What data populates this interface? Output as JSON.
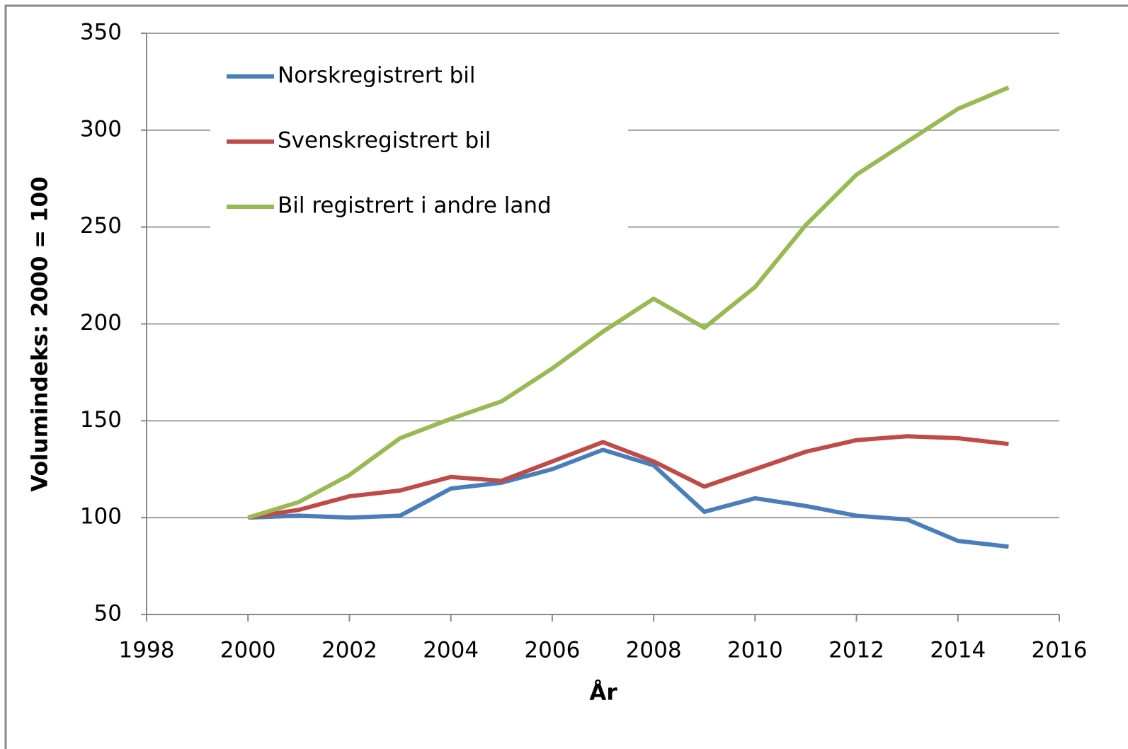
{
  "chart_data": {
    "type": "line",
    "x_label": "År",
    "y_label": "Volumindeks: 2000 = 100",
    "x": [
      2000,
      2001,
      2002,
      2003,
      2004,
      2005,
      2006,
      2007,
      2008,
      2009,
      2010,
      2011,
      2012,
      2013,
      2014,
      2015
    ],
    "series": [
      {
        "name": "Norskregistrert bil",
        "color": "#4a7ebb",
        "values": [
          100,
          101,
          100,
          101,
          115,
          118,
          125,
          135,
          127,
          103,
          110,
          106,
          101,
          99,
          88,
          85
        ]
      },
      {
        "name": "Svenskregistrert bil",
        "color": "#be4b48",
        "values": [
          100,
          104,
          111,
          114,
          121,
          119,
          129,
          139,
          129,
          116,
          125,
          134,
          140,
          142,
          141,
          138
        ]
      },
      {
        "name": "Bil registrert i andre land",
        "color": "#98b954",
        "values": [
          100,
          108,
          122,
          141,
          151,
          160,
          177,
          196,
          213,
          198,
          219,
          251,
          277,
          294,
          311,
          322
        ]
      }
    ],
    "xlim": [
      1998,
      2016
    ],
    "xticks": [
      1998,
      2000,
      2002,
      2004,
      2006,
      2008,
      2010,
      2012,
      2014,
      2016
    ],
    "ylim": [
      50,
      350
    ],
    "yticks": [
      50,
      100,
      150,
      200,
      250,
      300,
      350
    ],
    "grid": true,
    "legend": "upper left"
  }
}
